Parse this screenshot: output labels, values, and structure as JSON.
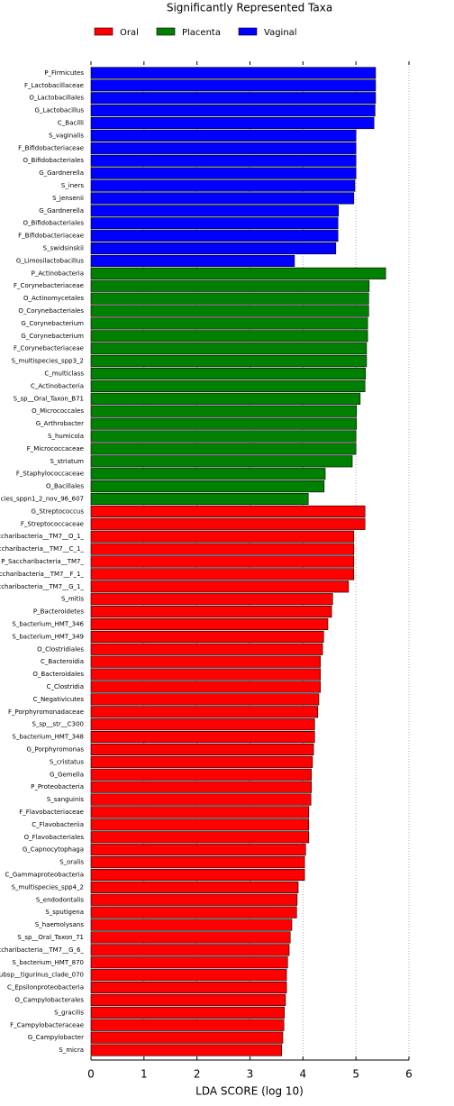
{
  "chart_data": {
    "type": "barh",
    "title": "Significantly Represented Taxa",
    "xlabel": "LDA SCORE (log 10)",
    "categories": [
      "P_Firmicutes",
      "F_Lactobacillaceae",
      "O_Lactobacillales",
      "G_Lactobacillus",
      "C_Bacilli",
      "S_vaginalis",
      "F_Bifidobacteriaceae",
      "O_Bifidobacteriales",
      "G_Gardnerella",
      "S_iners",
      "S_jensenii",
      "G_Gardnerella",
      "O_Bifidobacteriales",
      "F_Bifidobacteriaceae",
      "S_swidsinskii",
      "G_Limosilactobacillus",
      "P_Actinobacteria",
      "F_Corynebacteriaceae",
      "O_Actinomycetales",
      "O_Corynebacteriales",
      "G_Corynebacterium",
      "G_Corynebacterium",
      "F_Corynebacteriaceae",
      "S_multispecies_spp3_2",
      "C_multiclass",
      "C_Actinobacteria",
      "S_sp__Oral_Taxon_B71",
      "O_Micrococcales",
      "G_Arthrobacter",
      "S_humicola",
      "F_Micrococcaceae",
      "S_striatum",
      "F_Staphylococcaceae",
      "O_Bacillales",
      "cies_sppn1_2_nov_96_607",
      "G_Streptococcus",
      "F_Streptococcaceae",
      "ccharibacteria__TM7__O_1_",
      "ccharibacteria__TM7__C_1_",
      "P_Saccharibacteria__TM7_",
      "ccharibacteria__TM7__F_1_",
      "ccharibacteria__TM7__G_1_",
      "S_mitis",
      "P_Bacteroidetes",
      "S_bacterium_HMT_346",
      "S_bacterium_HMT_349",
      "O_Clostridiales",
      "C_Bacteroidia",
      "O_Bacteroidales",
      "C_Clostridia",
      "C_Negativicutes",
      "F_Porphyromonadaceae",
      "S_sp__str__C300",
      "S_bacterium_HMT_348",
      "G_Porphyromonas",
      "S_cristatus",
      "G_Gemella",
      "P_Proteobacteria",
      "S_sanguinis",
      "F_Flavobacteriaceae",
      "C_Flavobacteriia",
      "O_Flavobacteriales",
      "G_Capnocytophaga",
      "S_oralis",
      "C_Gammaproteobacteria",
      "S_multispecies_spp4_2",
      "S_endodontalis",
      "S_sputigena",
      "S_haemolysans",
      "S_sp__Oral_Taxon_71",
      "ccharibacteria__TM7__G_6_",
      "S_bacterium_HMT_870",
      "ubsp__tigurinus_clade_070",
      "C_Epsilonproteobacteria",
      "O_Campylobacterales",
      "S_gracilis",
      "F_Campylobacteraceae",
      "G_Campylobacter",
      "S_micra"
    ],
    "series": [
      {
        "name": "Oral",
        "color": "#ff0000",
        "values": [
          null,
          null,
          null,
          null,
          null,
          null,
          null,
          null,
          null,
          null,
          null,
          null,
          null,
          null,
          null,
          null,
          null,
          null,
          null,
          null,
          null,
          null,
          null,
          null,
          null,
          null,
          null,
          null,
          null,
          null,
          null,
          null,
          null,
          null,
          null,
          5.17,
          5.17,
          4.96,
          4.96,
          4.96,
          4.96,
          4.86,
          4.56,
          4.54,
          4.47,
          4.39,
          4.37,
          4.33,
          4.33,
          4.33,
          4.3,
          4.28,
          4.22,
          4.22,
          4.2,
          4.18,
          4.16,
          4.16,
          4.15,
          4.11,
          4.11,
          4.11,
          4.05,
          4.03,
          4.03,
          3.91,
          3.89,
          3.88,
          3.79,
          3.76,
          3.74,
          3.71,
          3.69,
          3.69,
          3.67,
          3.65,
          3.64,
          3.62,
          3.6
        ]
      },
      {
        "name": "Placenta",
        "color": "#008000",
        "values": [
          null,
          null,
          null,
          null,
          null,
          null,
          null,
          null,
          null,
          null,
          null,
          null,
          null,
          null,
          null,
          null,
          5.56,
          5.25,
          5.24,
          5.24,
          5.22,
          5.22,
          5.2,
          5.2,
          5.18,
          5.17,
          5.08,
          5.01,
          5.01,
          5.0,
          5.0,
          4.93,
          4.42,
          4.4,
          4.1,
          null,
          null,
          null,
          null,
          null,
          null,
          null,
          null,
          null,
          null,
          null,
          null,
          null,
          null,
          null,
          null,
          null,
          null,
          null,
          null,
          null,
          null,
          null,
          null,
          null,
          null,
          null,
          null,
          null,
          null,
          null,
          null,
          null,
          null,
          null,
          null,
          null,
          null,
          null,
          null,
          null,
          null,
          null,
          null
        ]
      },
      {
        "name": "Vaginal",
        "color": "#0000ff",
        "values": [
          5.37,
          5.37,
          5.37,
          5.36,
          5.34,
          5.0,
          5.0,
          5.0,
          5.0,
          4.98,
          4.96,
          4.67,
          4.66,
          4.66,
          4.62,
          3.84,
          null,
          null,
          null,
          null,
          null,
          null,
          null,
          null,
          null,
          null,
          null,
          null,
          null,
          null,
          null,
          null,
          null,
          null,
          null,
          null,
          null,
          null,
          null,
          null,
          null,
          null,
          null,
          null,
          null,
          null,
          null,
          null,
          null,
          null,
          null,
          null,
          null,
          null,
          null,
          null,
          null,
          null,
          null,
          null,
          null,
          null,
          null,
          null,
          null,
          null,
          null,
          null,
          null,
          null,
          null,
          null,
          null,
          null,
          null,
          null,
          null,
          null,
          null
        ]
      }
    ],
    "xlim": [
      0,
      6
    ],
    "xticks": [
      0,
      1,
      2,
      3,
      4,
      5,
      6
    ],
    "grid": true
  }
}
